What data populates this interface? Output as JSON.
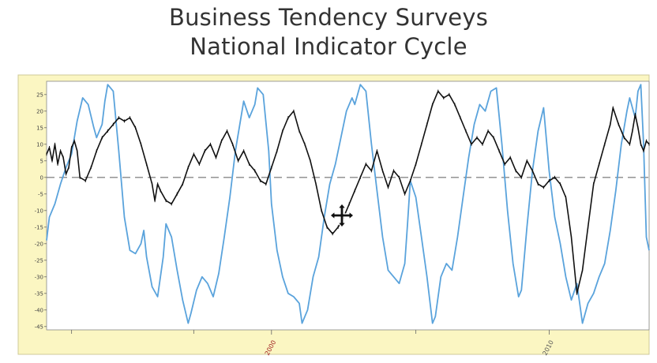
{
  "title_lines": [
    "Business Tendency Surveys",
    "National Indicator Cycle"
  ],
  "colors": {
    "frame_bg": "#fbf6c2",
    "plot_bg": "#ffffff",
    "series_blue": "#5aa3dc",
    "series_black": "#111111",
    "zero_line": "#888888",
    "x_label_2000": "#a02020",
    "x_label_2010": "#555555"
  },
  "cursor_icon": "move-cursor-icon",
  "chart_data": {
    "type": "line",
    "title": "",
    "xlabel": "",
    "ylabel": "",
    "xlim": [
      1991.9,
      2013.6
    ],
    "ylim": [
      -46,
      29
    ],
    "y_ticks": [
      25,
      20,
      15,
      10,
      5,
      0,
      -5,
      -10,
      -15,
      -20,
      -25,
      -30,
      -35,
      -40,
      -45
    ],
    "y_tick_labels": [
      "25",
      "20",
      "15",
      "10",
      "5",
      "0",
      "-5",
      "-10",
      "-15",
      "-20",
      "-25",
      "-30",
      "-35",
      "-40",
      "-45"
    ],
    "x_ticks": [
      2000,
      2010
    ],
    "x_tick_labels": [
      "2000",
      "2010"
    ],
    "x_minor_ticks": [
      1992.8,
      1997.2,
      2005.2,
      2014.0
    ],
    "reference_line": 0,
    "grid": false,
    "legend": "none",
    "series": [
      {
        "color": "#5aa3dc",
        "points": [
          [
            1991.9,
            -19
          ],
          [
            1992.0,
            -12
          ],
          [
            1992.2,
            -8
          ],
          [
            1992.4,
            -2
          ],
          [
            1992.6,
            3
          ],
          [
            1992.8,
            7
          ],
          [
            1993.0,
            17
          ],
          [
            1993.2,
            24
          ],
          [
            1993.4,
            22
          ],
          [
            1993.6,
            15
          ],
          [
            1993.7,
            12
          ],
          [
            1993.9,
            16
          ],
          [
            1994.0,
            23
          ],
          [
            1994.1,
            28
          ],
          [
            1994.3,
            26
          ],
          [
            1994.5,
            8
          ],
          [
            1994.7,
            -12
          ],
          [
            1994.9,
            -22
          ],
          [
            1995.1,
            -23
          ],
          [
            1995.3,
            -20
          ],
          [
            1995.4,
            -16
          ],
          [
            1995.5,
            -24
          ],
          [
            1995.7,
            -33
          ],
          [
            1995.9,
            -36
          ],
          [
            1996.1,
            -24
          ],
          [
            1996.2,
            -14
          ],
          [
            1996.4,
            -18
          ],
          [
            1996.6,
            -28
          ],
          [
            1996.8,
            -37
          ],
          [
            1997.0,
            -44
          ],
          [
            1997.1,
            -41
          ],
          [
            1997.3,
            -34
          ],
          [
            1997.5,
            -30
          ],
          [
            1997.7,
            -32
          ],
          [
            1997.9,
            -36
          ],
          [
            1998.1,
            -29
          ],
          [
            1998.3,
            -18
          ],
          [
            1998.5,
            -6
          ],
          [
            1998.7,
            8
          ],
          [
            1998.9,
            18
          ],
          [
            1999.0,
            23
          ],
          [
            1999.2,
            18
          ],
          [
            1999.4,
            22
          ],
          [
            1999.5,
            27
          ],
          [
            1999.7,
            25
          ],
          [
            1999.9,
            8
          ],
          [
            2000.0,
            -8
          ],
          [
            2000.2,
            -22
          ],
          [
            2000.4,
            -30
          ],
          [
            2000.6,
            -35
          ],
          [
            2000.8,
            -36
          ],
          [
            2001.0,
            -38
          ],
          [
            2001.1,
            -44
          ],
          [
            2001.3,
            -40
          ],
          [
            2001.5,
            -30
          ],
          [
            2001.7,
            -24
          ],
          [
            2001.9,
            -12
          ],
          [
            2002.1,
            -2
          ],
          [
            2002.3,
            4
          ],
          [
            2002.5,
            12
          ],
          [
            2002.7,
            20
          ],
          [
            2002.9,
            24
          ],
          [
            2003.0,
            22
          ],
          [
            2003.2,
            28
          ],
          [
            2003.4,
            26
          ],
          [
            2003.6,
            10
          ],
          [
            2003.8,
            -4
          ],
          [
            2004.0,
            -18
          ],
          [
            2004.2,
            -28
          ],
          [
            2004.4,
            -30
          ],
          [
            2004.6,
            -32
          ],
          [
            2004.8,
            -26
          ],
          [
            2004.9,
            -14
          ],
          [
            2005.0,
            -1
          ],
          [
            2005.2,
            -6
          ],
          [
            2005.4,
            -18
          ],
          [
            2005.6,
            -30
          ],
          [
            2005.8,
            -44
          ],
          [
            2005.9,
            -42
          ],
          [
            2006.1,
            -30
          ],
          [
            2006.3,
            -26
          ],
          [
            2006.5,
            -28
          ],
          [
            2006.7,
            -18
          ],
          [
            2006.9,
            -6
          ],
          [
            2007.1,
            6
          ],
          [
            2007.3,
            16
          ],
          [
            2007.5,
            22
          ],
          [
            2007.7,
            20
          ],
          [
            2007.9,
            26
          ],
          [
            2008.1,
            27
          ],
          [
            2008.3,
            10
          ],
          [
            2008.5,
            -10
          ],
          [
            2008.7,
            -26
          ],
          [
            2008.9,
            -36
          ],
          [
            2009.0,
            -34
          ],
          [
            2009.2,
            -15
          ],
          [
            2009.4,
            2
          ],
          [
            2009.6,
            14
          ],
          [
            2009.8,
            21
          ],
          [
            2010.0,
            2
          ],
          [
            2010.2,
            -12
          ],
          [
            2010.4,
            -20
          ],
          [
            2010.6,
            -30
          ],
          [
            2010.8,
            -37
          ],
          [
            2011.0,
            -32
          ],
          [
            2011.2,
            -44
          ],
          [
            2011.4,
            -38
          ],
          [
            2011.6,
            -35
          ],
          [
            2011.8,
            -30
          ],
          [
            2012.0,
            -26
          ],
          [
            2012.2,
            -16
          ],
          [
            2012.4,
            -4
          ],
          [
            2012.6,
            10
          ],
          [
            2012.8,
            20
          ],
          [
            2012.9,
            24
          ],
          [
            2013.1,
            18
          ],
          [
            2013.2,
            26
          ],
          [
            2013.3,
            28
          ],
          [
            2013.4,
            10
          ],
          [
            2013.5,
            -18
          ],
          [
            2013.6,
            -22
          ]
        ]
      },
      {
        "color": "#111111",
        "points": [
          [
            1991.9,
            7
          ],
          [
            1992.0,
            9
          ],
          [
            1992.1,
            5
          ],
          [
            1992.2,
            10
          ],
          [
            1992.3,
            4
          ],
          [
            1992.4,
            8
          ],
          [
            1992.5,
            6
          ],
          [
            1992.6,
            1
          ],
          [
            1992.7,
            3
          ],
          [
            1992.8,
            9
          ],
          [
            1992.9,
            11
          ],
          [
            1993.0,
            8
          ],
          [
            1993.1,
            0
          ],
          [
            1993.3,
            -1
          ],
          [
            1993.5,
            3
          ],
          [
            1993.7,
            8
          ],
          [
            1993.9,
            12
          ],
          [
            1994.1,
            14
          ],
          [
            1994.3,
            16
          ],
          [
            1994.5,
            18
          ],
          [
            1994.7,
            17
          ],
          [
            1994.9,
            18
          ],
          [
            1995.1,
            15
          ],
          [
            1995.3,
            10
          ],
          [
            1995.5,
            4
          ],
          [
            1995.7,
            -2
          ],
          [
            1995.8,
            -7
          ],
          [
            1995.9,
            -2
          ],
          [
            1996.0,
            -4
          ],
          [
            1996.2,
            -7
          ],
          [
            1996.4,
            -8
          ],
          [
            1996.6,
            -5
          ],
          [
            1996.8,
            -2
          ],
          [
            1997.0,
            3
          ],
          [
            1997.2,
            7
          ],
          [
            1997.4,
            4
          ],
          [
            1997.6,
            8
          ],
          [
            1997.8,
            10
          ],
          [
            1998.0,
            6
          ],
          [
            1998.2,
            11
          ],
          [
            1998.4,
            14
          ],
          [
            1998.6,
            10
          ],
          [
            1998.8,
            5
          ],
          [
            1999.0,
            8
          ],
          [
            1999.2,
            4
          ],
          [
            1999.4,
            2
          ],
          [
            1999.6,
            -1
          ],
          [
            1999.8,
            -2
          ],
          [
            2000.0,
            3
          ],
          [
            2000.2,
            8
          ],
          [
            2000.4,
            14
          ],
          [
            2000.6,
            18
          ],
          [
            2000.8,
            20
          ],
          [
            2001.0,
            14
          ],
          [
            2001.2,
            10
          ],
          [
            2001.4,
            5
          ],
          [
            2001.6,
            -2
          ],
          [
            2001.8,
            -10
          ],
          [
            2002.0,
            -15
          ],
          [
            2002.2,
            -17
          ],
          [
            2002.4,
            -15
          ],
          [
            2002.6,
            -12
          ],
          [
            2002.8,
            -8
          ],
          [
            2003.0,
            -4
          ],
          [
            2003.2,
            0
          ],
          [
            2003.4,
            4
          ],
          [
            2003.6,
            2
          ],
          [
            2003.8,
            8
          ],
          [
            2004.0,
            2
          ],
          [
            2004.2,
            -3
          ],
          [
            2004.4,
            2
          ],
          [
            2004.6,
            0
          ],
          [
            2004.8,
            -5
          ],
          [
            2005.0,
            -1
          ],
          [
            2005.2,
            4
          ],
          [
            2005.4,
            10
          ],
          [
            2005.6,
            16
          ],
          [
            2005.8,
            22
          ],
          [
            2006.0,
            26
          ],
          [
            2006.2,
            24
          ],
          [
            2006.4,
            25
          ],
          [
            2006.6,
            22
          ],
          [
            2006.8,
            18
          ],
          [
            2007.0,
            14
          ],
          [
            2007.2,
            10
          ],
          [
            2007.4,
            12
          ],
          [
            2007.6,
            10
          ],
          [
            2007.8,
            14
          ],
          [
            2008.0,
            12
          ],
          [
            2008.2,
            8
          ],
          [
            2008.4,
            4
          ],
          [
            2008.6,
            6
          ],
          [
            2008.8,
            2
          ],
          [
            2009.0,
            0
          ],
          [
            2009.2,
            5
          ],
          [
            2009.4,
            2
          ],
          [
            2009.6,
            -2
          ],
          [
            2009.8,
            -3
          ],
          [
            2010.0,
            -1
          ],
          [
            2010.2,
            0
          ],
          [
            2010.4,
            -2
          ],
          [
            2010.6,
            -6
          ],
          [
            2010.8,
            -18
          ],
          [
            2011.0,
            -35
          ],
          [
            2011.2,
            -28
          ],
          [
            2011.4,
            -15
          ],
          [
            2011.6,
            -2
          ],
          [
            2011.8,
            4
          ],
          [
            2012.0,
            10
          ],
          [
            2012.2,
            16
          ],
          [
            2012.3,
            21
          ],
          [
            2012.5,
            16
          ],
          [
            2012.7,
            12
          ],
          [
            2012.9,
            10
          ],
          [
            2013.0,
            14
          ],
          [
            2013.1,
            19
          ],
          [
            2013.2,
            15
          ],
          [
            2013.3,
            10
          ],
          [
            2013.4,
            8
          ],
          [
            2013.5,
            11
          ],
          [
            2013.6,
            10
          ]
        ]
      }
    ]
  }
}
